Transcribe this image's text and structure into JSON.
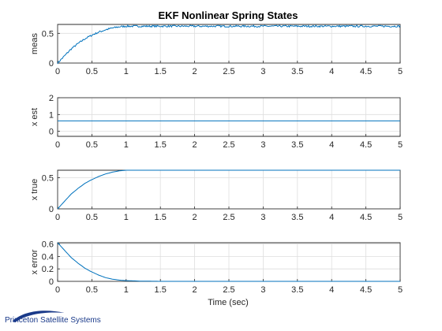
{
  "chart_data": {
    "type": "line",
    "title": "EKF Nonlinear Spring States",
    "xlabel": "Time (sec)",
    "line_color": "#0072bd",
    "grid": true,
    "xlim": [
      0,
      5
    ],
    "xticks": [
      "0",
      "0.5",
      "1",
      "1.5",
      "2",
      "2.5",
      "3",
      "3.5",
      "4",
      "4.5",
      "5"
    ],
    "subplots": [
      {
        "ylabel": "meas",
        "ylim": [
          0,
          0.65
        ],
        "yticks": [
          "0",
          "0.5"
        ],
        "noisy": true,
        "x": [
          0,
          0.1,
          0.2,
          0.3,
          0.4,
          0.5,
          0.6,
          0.7,
          0.8,
          0.9,
          1.0,
          1.2,
          1.5,
          2.0,
          3.0,
          4.0,
          5.0
        ],
        "values": [
          0,
          0.12,
          0.24,
          0.33,
          0.41,
          0.47,
          0.52,
          0.56,
          0.59,
          0.61,
          0.62,
          0.62,
          0.62,
          0.62,
          0.62,
          0.62,
          0.62
        ]
      },
      {
        "ylabel": "x est",
        "ylim": [
          -0.3,
          2
        ],
        "yticks": [
          "0",
          "1",
          "2"
        ],
        "noisy": false,
        "x": [
          0,
          5
        ],
        "values": [
          0.62,
          0.62
        ]
      },
      {
        "ylabel": "x true",
        "ylim": [
          0,
          0.62
        ],
        "yticks": [
          "0",
          "0.5"
        ],
        "noisy": false,
        "x": [
          0,
          0.1,
          0.2,
          0.3,
          0.4,
          0.5,
          0.6,
          0.7,
          0.8,
          0.9,
          1.0,
          1.2,
          1.5,
          2.0,
          3.0,
          4.0,
          5.0
        ],
        "values": [
          0,
          0.12,
          0.24,
          0.33,
          0.41,
          0.47,
          0.52,
          0.56,
          0.59,
          0.61,
          0.62,
          0.62,
          0.62,
          0.62,
          0.62,
          0.62,
          0.62
        ]
      },
      {
        "ylabel": "x error",
        "ylim": [
          0,
          0.62
        ],
        "yticks": [
          "0",
          "0.2",
          "0.4",
          "0.6"
        ],
        "noisy": false,
        "x": [
          0,
          0.1,
          0.2,
          0.3,
          0.4,
          0.5,
          0.6,
          0.7,
          0.8,
          0.9,
          1.0,
          1.2,
          1.5,
          2.0,
          3.0,
          4.0,
          5.0
        ],
        "values": [
          0.62,
          0.5,
          0.38,
          0.29,
          0.21,
          0.15,
          0.1,
          0.06,
          0.035,
          0.02,
          0.012,
          0.004,
          0.0,
          0.0,
          0.0,
          0.0,
          0.0
        ]
      }
    ]
  },
  "logo": {
    "text": "Princeton Satellite Systems",
    "color": "#1a3a8a"
  }
}
